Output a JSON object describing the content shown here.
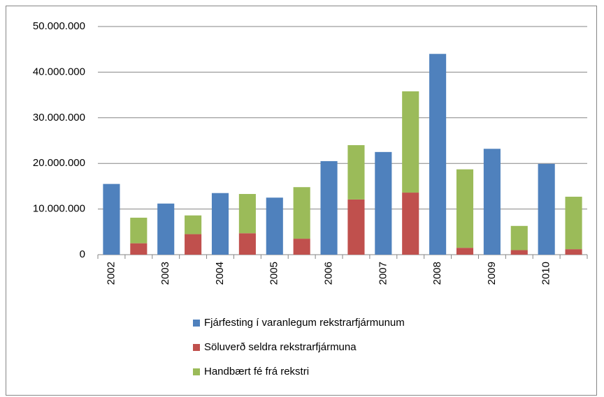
{
  "chart_data": {
    "type": "bar",
    "stacked": true,
    "categories": [
      "2002",
      null,
      "2003",
      null,
      "2004",
      null,
      "2005",
      null,
      "2006",
      null,
      "2007",
      null,
      "2008",
      null,
      "2009",
      null,
      "2010",
      null
    ],
    "series": [
      {
        "name": "Fjárfesting í varanlegum rekstrarfjármunum",
        "color": "#4f81bd",
        "values": [
          15500000,
          null,
          11200000,
          null,
          13500000,
          null,
          12500000,
          null,
          20500000,
          null,
          22500000,
          null,
          44000000,
          null,
          23200000,
          null,
          19900000,
          null
        ]
      },
      {
        "name": "Söluverð seldra rekstrarfjármuna",
        "color": "#c0504d",
        "values": [
          null,
          2500000,
          null,
          4500000,
          null,
          4700000,
          null,
          3500000,
          null,
          12100000,
          null,
          13600000,
          null,
          1500000,
          null,
          1000000,
          null,
          1200000
        ]
      },
      {
        "name": "Handbært fé frá rekstri",
        "color": "#9bbb59",
        "values": [
          null,
          5600000,
          null,
          4100000,
          null,
          8600000,
          null,
          11300000,
          null,
          11900000,
          null,
          22200000,
          null,
          17200000,
          null,
          5300000,
          null,
          11500000
        ]
      }
    ],
    "ylim": [
      0,
      50000000
    ],
    "yticks": [
      0,
      {
        "value": 10000000,
        "label": "10.000.000"
      },
      {
        "value": 20000000,
        "label": "20.000.000"
      },
      {
        "value": 30000000,
        "label": "30.000.000"
      },
      {
        "value": 40000000,
        "label": "40.000.000"
      },
      {
        "value": 50000000,
        "label": "50.000.000"
      }
    ],
    "grid": true,
    "legend": "bottom"
  }
}
